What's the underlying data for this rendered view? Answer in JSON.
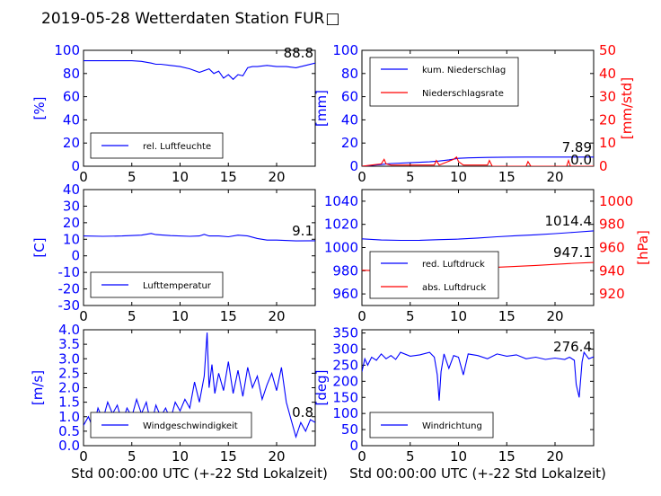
{
  "title": "2019-05-28 Wetterdaten Station FUR",
  "title_glyph": "□",
  "xlabel": "Std 00:00:00 UTC (+-22 Std Lokalzeit)",
  "colors": {
    "primary": "#0000ff",
    "secondary": "#ff0000"
  },
  "chart_data": [
    {
      "type": "line",
      "ylabel": "[%]",
      "xlim": [
        0,
        24
      ],
      "ylim": [
        0,
        100
      ],
      "yticks": [
        0,
        20,
        40,
        60,
        80,
        100
      ],
      "legend": "bottom-left",
      "last_value": "88.8",
      "series": [
        {
          "name": "rel. Luftfeuchte",
          "color": "#0000ff",
          "x": [
            0,
            1,
            2,
            3,
            4,
            5,
            6,
            7,
            7.5,
            8,
            9,
            10,
            11,
            12,
            13,
            13.5,
            14,
            14.5,
            15,
            15.5,
            16,
            16.5,
            17,
            17.5,
            18,
            19,
            20,
            21,
            22,
            23,
            24
          ],
          "y": [
            91,
            91,
            91,
            91,
            91,
            91,
            90.5,
            89,
            88,
            88,
            87,
            86,
            84,
            81,
            84,
            80,
            82,
            76,
            79,
            75,
            79,
            78,
            85,
            86,
            86,
            87,
            86,
            86,
            85,
            87,
            89
          ]
        }
      ]
    },
    {
      "type": "line",
      "ylabel": "[mm]",
      "ylabel_right": "[mm/std]",
      "xlim": [
        0,
        24
      ],
      "ylim": [
        0,
        100
      ],
      "ylim_right": [
        0,
        50
      ],
      "yticks": [
        0,
        20,
        40,
        60,
        80,
        100
      ],
      "yticks_right": [
        0,
        10,
        20,
        30,
        40,
        50
      ],
      "legend": "top-left",
      "last_value": "7.89",
      "last_value_2": "0.0",
      "series": [
        {
          "name": "kum. Niederschlag",
          "color": "#0000ff",
          "x": [
            0,
            2,
            3,
            5,
            7,
            8,
            9,
            10,
            11,
            13,
            15,
            17,
            20,
            24
          ],
          "y": [
            0,
            1.5,
            2.3,
            3,
            3.8,
            4.5,
            5.5,
            6.8,
            7.2,
            7.6,
            7.8,
            7.89,
            7.89,
            7.89
          ]
        },
        {
          "name": "Niederschlagsrate",
          "color": "#ff0000",
          "axis": "right",
          "x": [
            0,
            1,
            2,
            2.3,
            2.5,
            3,
            5,
            7.5,
            7.7,
            8,
            9.5,
            9.8,
            10,
            10.5,
            13,
            13.2,
            13.5,
            17,
            17.2,
            17.5,
            21.2,
            21.4,
            21.6,
            24
          ],
          "y": [
            0,
            0.5,
            1,
            3,
            1,
            0.5,
            0.5,
            0.5,
            2.5,
            0.5,
            3,
            4,
            2,
            0.5,
            0.5,
            2.5,
            0,
            0,
            2,
            0,
            0,
            2.5,
            0,
            0
          ]
        }
      ]
    },
    {
      "type": "line",
      "ylabel": "[C]",
      "xlim": [
        0,
        24
      ],
      "ylim": [
        -30,
        40
      ],
      "yticks": [
        -30,
        -20,
        -10,
        0,
        10,
        20,
        30,
        40
      ],
      "legend": "bottom-left",
      "last_value": "9.1",
      "series": [
        {
          "name": "Lufttemperatur",
          "color": "#0000ff",
          "x": [
            0,
            2,
            4,
            6,
            7,
            7.5,
            9,
            11,
            12,
            12.5,
            13,
            14,
            15,
            16,
            17,
            18,
            19,
            20,
            22,
            24
          ],
          "y": [
            12,
            11.8,
            12,
            12.5,
            13.5,
            12.8,
            12.2,
            11.8,
            12,
            13,
            12,
            12,
            11.5,
            12.5,
            12,
            10.5,
            9.5,
            9.5,
            9,
            9.1
          ]
        }
      ]
    },
    {
      "type": "line",
      "ylabel": "[hPa]",
      "xlim": [
        0,
        24
      ],
      "ylim": [
        950,
        1050
      ],
      "ylim_right": [
        910,
        1010
      ],
      "yticks": [
        960,
        980,
        1000,
        1020,
        1040
      ],
      "yticks_right": [
        920,
        940,
        960,
        980,
        1000
      ],
      "legend": "bottom-left",
      "last_value": "1014.4",
      "last_value_2": "947.1",
      "series": [
        {
          "name": "red. Luftdruck",
          "color": "#0000ff",
          "x": [
            0,
            2,
            4,
            6,
            8,
            10,
            12,
            14,
            16,
            18,
            20,
            22,
            24
          ],
          "y": [
            1007.5,
            1006.5,
            1006.2,
            1006.3,
            1006.8,
            1007.3,
            1008.2,
            1009.3,
            1010.2,
            1011,
            1012,
            1013.2,
            1014.4
          ]
        },
        {
          "name": "abs. Luftdruck",
          "color": "#ff0000",
          "axis": "right",
          "x": [
            0,
            2,
            4,
            6,
            8,
            10,
            12,
            14,
            16,
            18,
            20,
            22,
            24
          ],
          "y": [
            940.5,
            939.8,
            939.6,
            939.8,
            940.3,
            941.2,
            942,
            943,
            943.8,
            944.6,
            945.5,
            946.4,
            947.1
          ]
        }
      ]
    },
    {
      "type": "line",
      "ylabel": "[m/s]",
      "xlim": [
        0,
        24
      ],
      "ylim": [
        0,
        4
      ],
      "yticks": [
        0.0,
        0.5,
        1.0,
        1.5,
        2.0,
        2.5,
        3.0,
        3.5,
        4.0
      ],
      "ytick_decimals": 1,
      "legend": "bottom-left",
      "last_value": "0.8",
      "series": [
        {
          "name": "Windgeschwindigkeit",
          "color": "#0000ff",
          "x": [
            0,
            0.5,
            1,
            1.5,
            2,
            2.5,
            3,
            3.5,
            4,
            4.5,
            5,
            5.5,
            6,
            6.5,
            7,
            7.5,
            8,
            8.5,
            9,
            9.5,
            10,
            10.5,
            11,
            11.5,
            12,
            12.5,
            12.8,
            13,
            13.3,
            13.6,
            14,
            14.5,
            15,
            15.5,
            16,
            16.5,
            17,
            17.5,
            18,
            18.5,
            19,
            19.5,
            20,
            20.5,
            21,
            21.5,
            22,
            22.5,
            23,
            23.5,
            24
          ],
          "y": [
            0.7,
            1.0,
            0.6,
            1.3,
            0.9,
            1.5,
            1.1,
            1.4,
            0.8,
            1.3,
            1.0,
            1.6,
            1.1,
            1.5,
            0.7,
            1.4,
            1.0,
            1.3,
            0.9,
            1.5,
            1.2,
            1.6,
            1.3,
            2.2,
            1.5,
            2.4,
            3.9,
            2.0,
            2.8,
            1.8,
            2.5,
            1.9,
            2.9,
            1.8,
            2.6,
            1.7,
            2.7,
            2.0,
            2.4,
            1.6,
            2.1,
            2.5,
            1.9,
            2.7,
            1.5,
            0.9,
            0.3,
            0.8,
            0.5,
            0.9,
            0.8
          ]
        }
      ]
    },
    {
      "type": "line",
      "ylabel": "[deg]",
      "xlim": [
        0,
        24
      ],
      "ylim": [
        0,
        360
      ],
      "yticks": [
        0,
        50,
        100,
        150,
        200,
        250,
        300,
        350
      ],
      "legend": "bottom-left",
      "last_value": "276.4",
      "series": [
        {
          "name": "Windrichtung",
          "color": "#0000ff",
          "x": [
            0,
            0.3,
            0.6,
            1,
            1.5,
            2,
            2.5,
            3,
            3.5,
            4,
            5,
            6,
            7,
            7.5,
            7.8,
            8,
            8.2,
            8.5,
            9,
            9.5,
            10,
            10.5,
            11,
            12,
            13,
            14,
            15,
            16,
            17,
            18,
            19,
            20,
            21,
            21.5,
            22,
            22.2,
            22.5,
            22.8,
            23,
            23.5,
            24
          ],
          "y": [
            230,
            270,
            250,
            275,
            265,
            285,
            270,
            280,
            268,
            290,
            278,
            282,
            290,
            275,
            220,
            140,
            230,
            285,
            240,
            280,
            275,
            220,
            285,
            280,
            270,
            285,
            278,
            282,
            270,
            275,
            268,
            272,
            268,
            275,
            265,
            190,
            150,
            260,
            290,
            270,
            276
          ]
        }
      ]
    }
  ]
}
